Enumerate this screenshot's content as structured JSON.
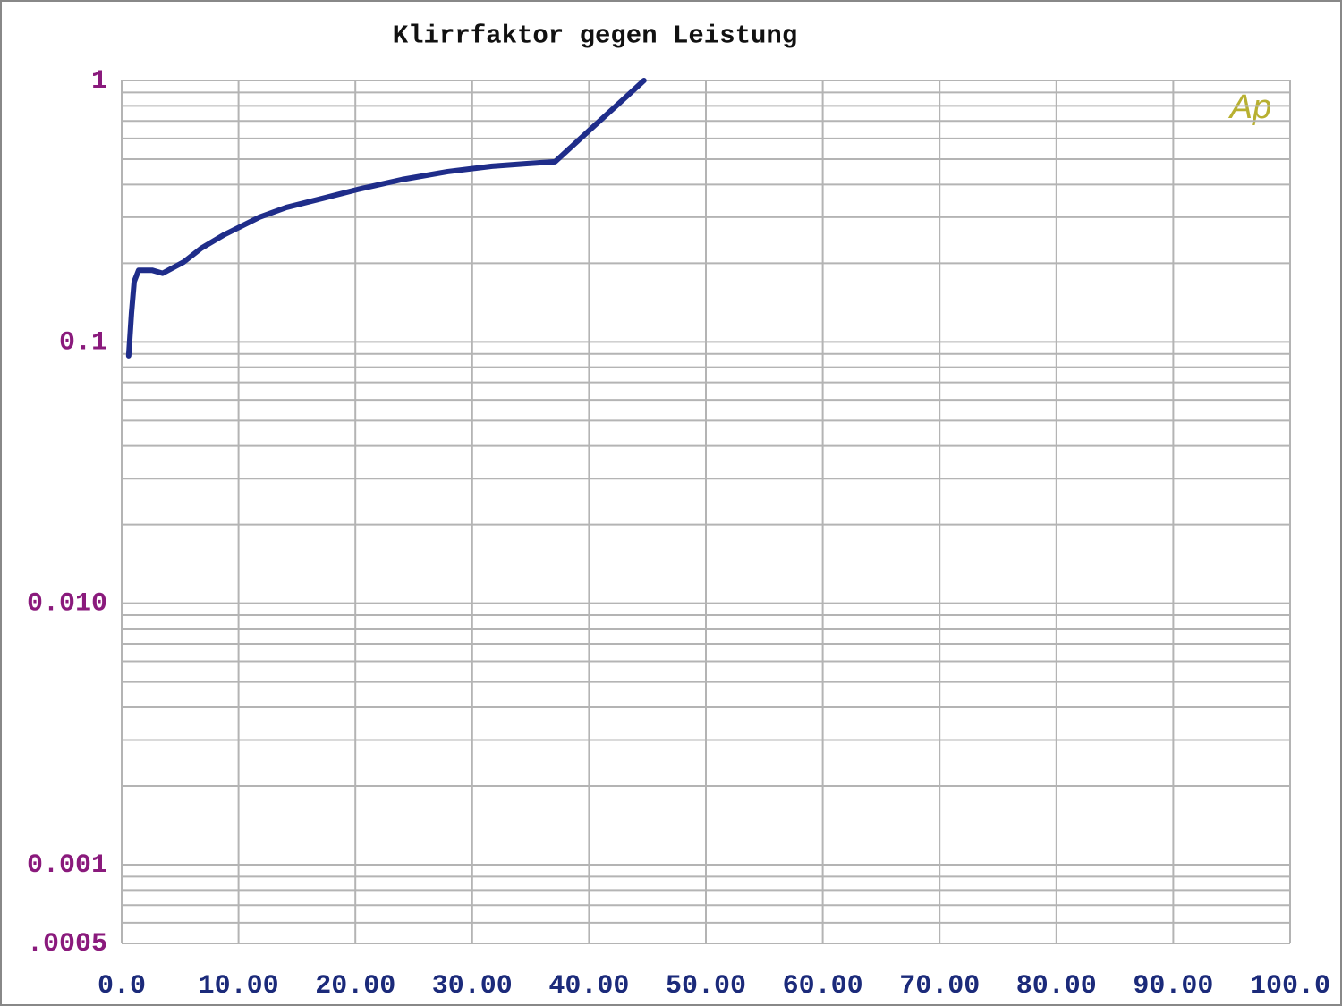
{
  "chart_data": {
    "type": "line",
    "title": "Klirrfaktor  gegen  Leistung",
    "annotation": "Ap",
    "x": [
      0.6,
      0.84,
      1.07,
      1.45,
      2.6,
      3.5,
      5.3,
      6.8,
      8.7,
      11.8,
      14.1,
      17.2,
      20.2,
      24.0,
      27.9,
      31.7,
      34.8,
      37.1,
      40.1,
      43.2,
      44.7
    ],
    "series": [
      {
        "color": "#1f2d8a",
        "values": [
          0.0885,
          0.129,
          0.17,
          0.188,
          0.188,
          0.183,
          0.202,
          0.228,
          0.256,
          0.3,
          0.327,
          0.354,
          0.383,
          0.418,
          0.448,
          0.47,
          0.481,
          0.489,
          0.649,
          0.868,
          1.0
        ]
      }
    ],
    "xlim": [
      0,
      100
    ],
    "xticks": [
      {
        "value": 0,
        "label": "0.0"
      },
      {
        "value": 10,
        "label": "10.00"
      },
      {
        "value": 20,
        "label": "20.00"
      },
      {
        "value": 30,
        "label": "30.00"
      },
      {
        "value": 40,
        "label": "40.00"
      },
      {
        "value": 50,
        "label": "50.00"
      },
      {
        "value": 60,
        "label": "60.00"
      },
      {
        "value": 70,
        "label": "70.00"
      },
      {
        "value": 80,
        "label": "80.00"
      },
      {
        "value": 90,
        "label": "90.00"
      },
      {
        "value": 100,
        "label": "100.0"
      }
    ],
    "ylim": [
      0.0005,
      1
    ],
    "yticks": [
      1,
      0.1,
      {
        "value": 0.01,
        "label": "0.010"
      },
      0.001,
      {
        "value": 0.0005,
        "label": ".0005"
      }
    ],
    "log_y": true,
    "grid": true,
    "minor_grid": true
  }
}
